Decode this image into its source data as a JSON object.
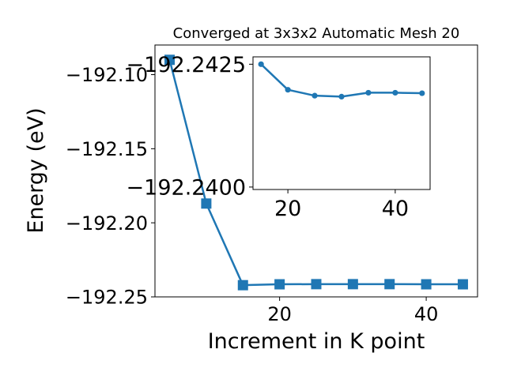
{
  "chart_data": [
    {
      "type": "line",
      "title": "Converged at 3x3x2 Automatic Mesh 20",
      "xlabel": "Increment in K point",
      "ylabel": "Energy (eV)",
      "marker": "square",
      "color": "#1f77b4",
      "xlim": [
        3,
        47
      ],
      "ylim": [
        -192.25,
        -192.08
      ],
      "xticks": [
        20,
        40
      ],
      "yticks": [
        -192.25,
        -192.2,
        -192.15,
        -192.1
      ],
      "x": [
        5,
        10,
        15,
        20,
        25,
        30,
        35,
        40,
        45
      ],
      "y": [
        -192.09,
        -192.187,
        -192.2421,
        -192.2415,
        -192.2414,
        -192.2414,
        -192.2414,
        -192.2415,
        -192.2415
      ],
      "xtick_labels": [
        "20",
        "40"
      ],
      "ytick_labels": [
        "−192.25",
        "−192.20",
        "−192.15",
        "−192.10"
      ]
    },
    {
      "type": "line",
      "inset": true,
      "marker": "circle",
      "color": "#1f77b4",
      "xlim": [
        13.5,
        46.5
      ],
      "ylim": [
        -192.23995,
        -192.24265
      ],
      "xticks": [
        20,
        40
      ],
      "yticks": [
        -192.2425,
        -192.24
      ],
      "x": [
        15,
        20,
        25,
        30,
        35,
        40,
        45
      ],
      "y": [
        -192.2425,
        -192.24198,
        -192.24186,
        -192.24184,
        -192.24192,
        -192.24192,
        -192.24191
      ],
      "xtick_labels": [
        "20",
        "40"
      ],
      "ytick_labels": [
        "−192.2425",
        "−192.2400"
      ]
    }
  ]
}
